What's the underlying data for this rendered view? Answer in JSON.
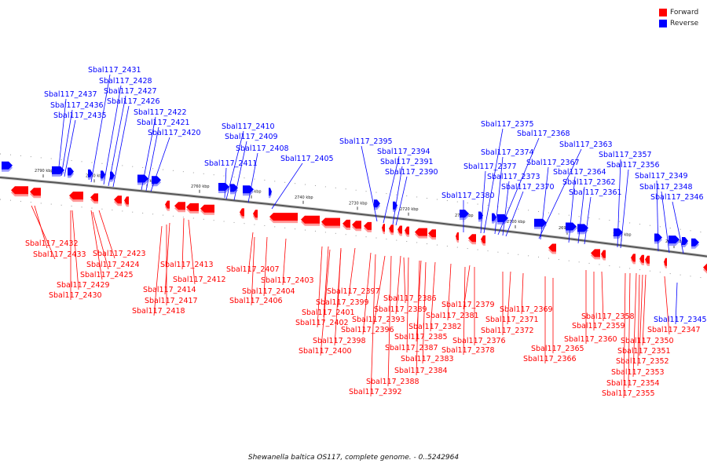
{
  "legend": [
    {
      "label": "Forward",
      "color": "#ff0000"
    },
    {
      "label": "Reverse",
      "color": "#0000ff"
    }
  ],
  "caption": "Shewanella baltica OS117, complete genome. - 0..5242964",
  "axis_ticks": [
    "2790 kbp",
    "2780 kbp",
    "2770 kbp",
    "2760 kbp",
    "2750 kbp",
    "2740 kbp",
    "2730 kbp",
    "2720 kbp",
    "2710 kbp",
    "2700 kbp",
    "2690 kbp",
    "2680 kbp",
    "2670 kbp"
  ],
  "reverse_genes": [
    "Sbal117_2431",
    "Sbal117_2428",
    "Sbal117_2437",
    "Sbal117_2427",
    "Sbal117_2436",
    "Sbal117_2426",
    "Sbal117_2435",
    "Sbal117_2422",
    "Sbal117_2421",
    "Sbal117_2420",
    "Sbal117_2410",
    "Sbal117_2409",
    "Sbal117_2408",
    "Sbal117_2411",
    "Sbal117_2405",
    "Sbal117_2395",
    "Sbal117_2394",
    "Sbal117_2391",
    "Sbal117_2390",
    "Sbal117_2375",
    "Sbal117_2368",
    "Sbal117_2363",
    "Sbal117_2374",
    "Sbal117_2377",
    "Sbal117_2367",
    "Sbal117_2357",
    "Sbal117_2356",
    "Sbal117_2373",
    "Sbal117_2364",
    "Sbal117_2349",
    "Sbal117_2370",
    "Sbal117_2362",
    "Sbal117_2348",
    "Sbal117_2380",
    "Sbal117_2361",
    "Sbal117_2346",
    "Sbal117_2345"
  ],
  "forward_genes": [
    "Sbal117_2432",
    "Sbal117_2433",
    "Sbal117_2423",
    "Sbal117_2424",
    "Sbal117_2425",
    "Sbal117_2429",
    "Sbal117_2430",
    "Sbal117_2413",
    "Sbal117_2412",
    "Sbal117_2414",
    "Sbal117_2417",
    "Sbal117_2418",
    "Sbal117_2407",
    "Sbal117_2403",
    "Sbal117_2404",
    "Sbal117_2406",
    "Sbal117_2397",
    "Sbal117_2399",
    "Sbal117_2401",
    "Sbal117_2402",
    "Sbal117_2386",
    "Sbal117_2389",
    "Sbal117_2393",
    "Sbal117_2396",
    "Sbal117_2398",
    "Sbal117_2400",
    "Sbal117_2385",
    "Sbal117_2387",
    "Sbal117_2383",
    "Sbal117_2384",
    "Sbal117_2388",
    "Sbal117_2392",
    "Sbal117_2379",
    "Sbal117_2381",
    "Sbal117_2382",
    "Sbal117_2376",
    "Sbal117_2378",
    "Sbal117_2369",
    "Sbal117_2371",
    "Sbal117_2372",
    "Sbal117_2365",
    "Sbal117_2366",
    "Sbal117_2358",
    "Sbal117_2359",
    "Sbal117_2360",
    "Sbal117_2347",
    "Sbal117_2350",
    "Sbal117_2351",
    "Sbal117_2352",
    "Sbal117_2353",
    "Sbal117_2354",
    "Sbal117_2355"
  ]
}
